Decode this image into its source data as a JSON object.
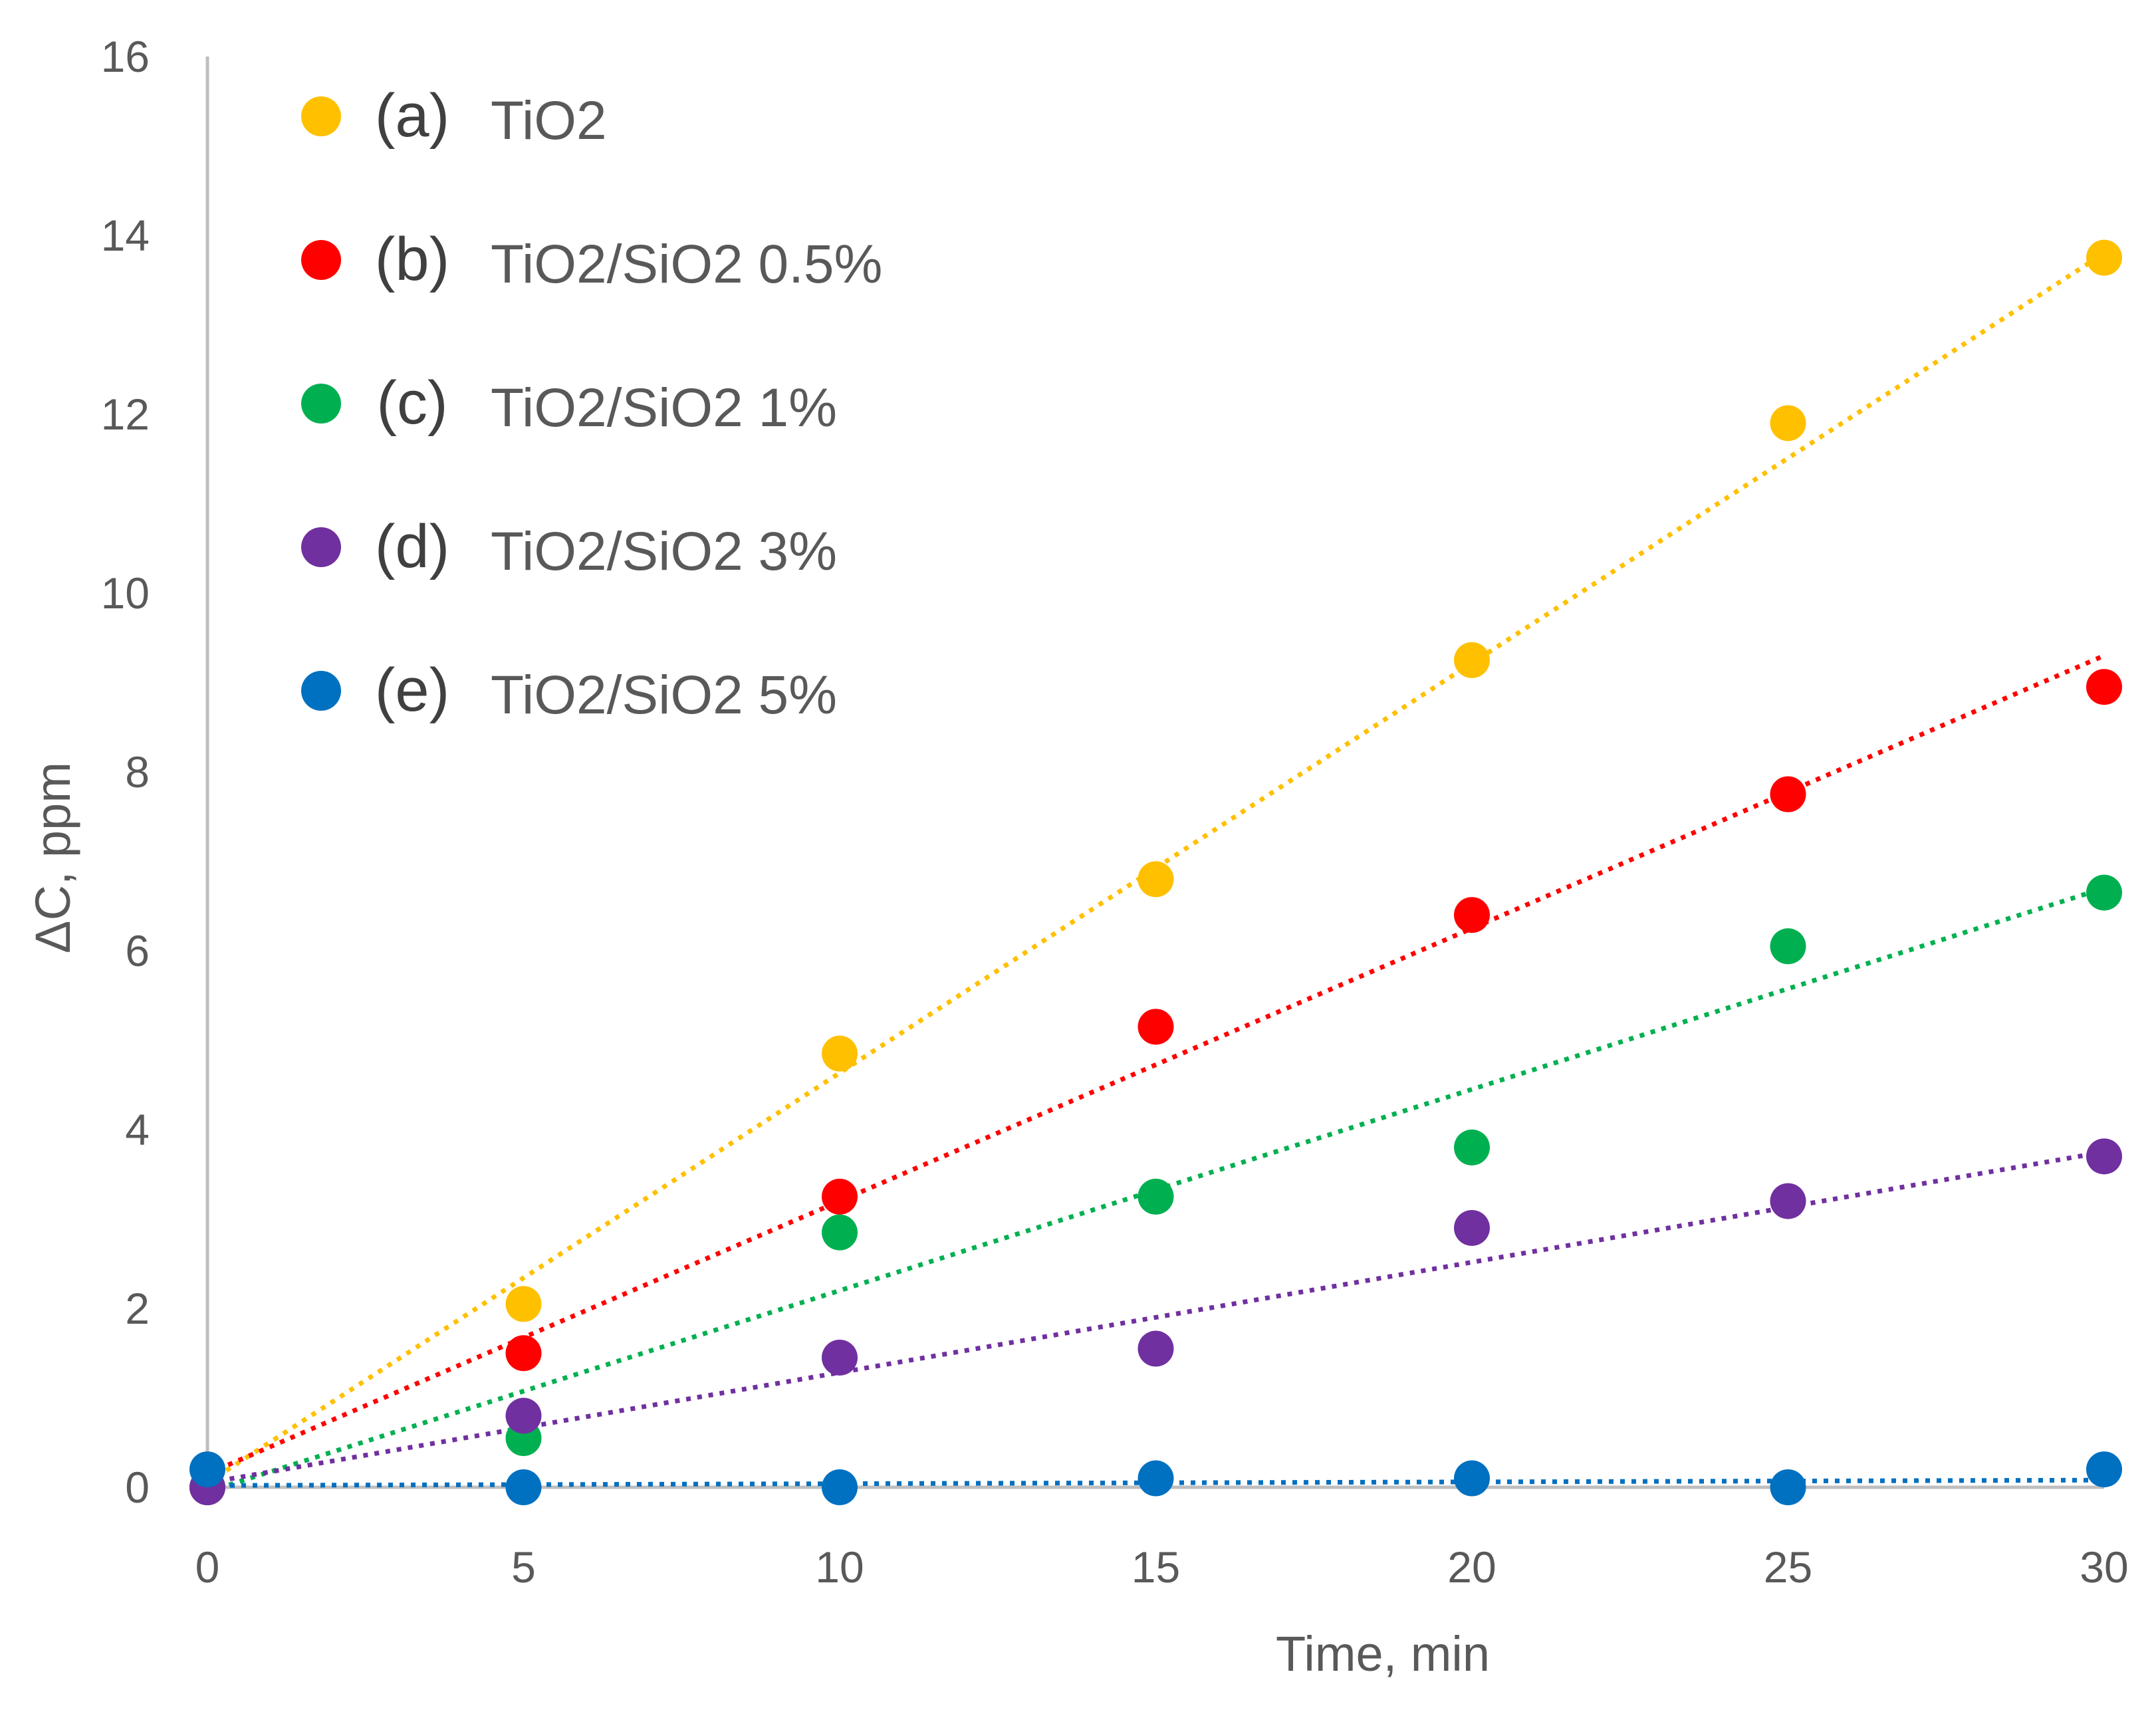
{
  "chart_data": {
    "type": "scatter",
    "title": "",
    "xlabel": "Time, min",
    "ylabel": "ΔC, ppm",
    "xlim": [
      0,
      30
    ],
    "ylim": [
      0,
      16
    ],
    "x_ticks": [
      "0",
      "5",
      "10",
      "15",
      "20",
      "25",
      "30"
    ],
    "y_ticks": [
      "0",
      "2",
      "4",
      "6",
      "8",
      "10",
      "12",
      "14",
      "16"
    ],
    "grid": false,
    "legend_position": "top-left",
    "trendline": "linear, dotted",
    "x": [
      0,
      5,
      10,
      15,
      20,
      25,
      30
    ],
    "series": [
      {
        "tag": "(a)",
        "name": "TiO2",
        "color": "#FFC000",
        "values": [
          0.0,
          2.05,
          4.85,
          6.8,
          9.25,
          11.9,
          13.75
        ],
        "trend_end": [
          0.05,
          13.8
        ]
      },
      {
        "tag": "(b)",
        "name": "TiO2/SiO2 0.5%",
        "color": "#FF0000",
        "values": [
          0.0,
          1.5,
          3.25,
          5.15,
          6.4,
          7.75,
          8.95
        ],
        "trend_end": [
          0.15,
          9.3
        ]
      },
      {
        "tag": "(c)",
        "name": "TiO2/SiO2 1%",
        "color": "#00B050",
        "values": [
          0.0,
          0.55,
          2.85,
          3.25,
          3.8,
          6.05,
          6.65
        ],
        "trend_end": [
          -0.05,
          6.7
        ]
      },
      {
        "tag": "(d)",
        "name": "TiO2/SiO2 3%",
        "color": "#7030A0",
        "values": [
          0.0,
          0.8,
          1.45,
          1.55,
          2.9,
          3.2,
          3.7
        ],
        "trend_end": [
          0.05,
          3.75
        ]
      },
      {
        "tag": "(e)",
        "name": "TiO2/SiO2 5%",
        "color": "#0070C0",
        "values": [
          0.2,
          0.0,
          0.0,
          0.1,
          0.1,
          0.0,
          0.2
        ],
        "trend_end": [
          0.02,
          0.08
        ]
      }
    ]
  }
}
